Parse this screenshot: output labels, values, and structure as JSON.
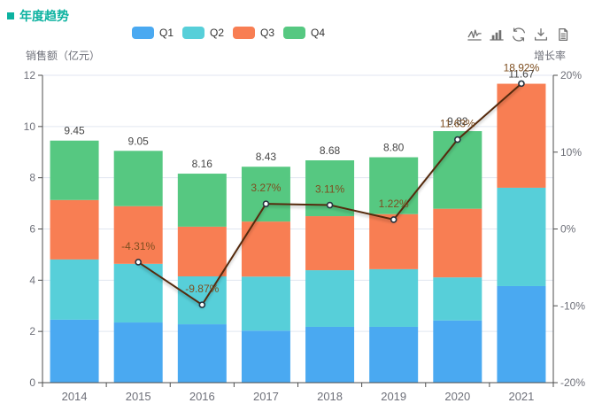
{
  "title": {
    "text": "年度趋势"
  },
  "legend": {
    "items": [
      {
        "label": "Q1",
        "color": "#4AA9F1"
      },
      {
        "label": "Q2",
        "color": "#57CFD9"
      },
      {
        "label": "Q3",
        "color": "#F87E53"
      },
      {
        "label": "Q4",
        "color": "#56C881"
      }
    ]
  },
  "toolbar": {
    "icons": [
      "switch-to-line-chart",
      "switch-to-bar-chart",
      "restore",
      "save-as-image",
      "data-view"
    ]
  },
  "axes": {
    "left": {
      "name": "销售额（亿元）",
      "ticks": [
        0,
        2,
        4,
        6,
        8,
        10,
        12
      ],
      "range": [
        0,
        12
      ]
    },
    "right": {
      "name": "增长率",
      "ticks": [
        "-20%",
        "-10%",
        "0%",
        "10%",
        "20%"
      ],
      "tick_values": [
        -20,
        -10,
        0,
        10,
        20
      ],
      "range": [
        -20,
        20
      ]
    },
    "x": {
      "categories": [
        "2014",
        "2015",
        "2016",
        "2017",
        "2018",
        "2019",
        "2020",
        "2021"
      ]
    }
  },
  "chart_data": {
    "type": "bar",
    "subtype": "stacked-bar-with-line-overlay",
    "title": "年度趋势",
    "categories": [
      "2014",
      "2015",
      "2016",
      "2017",
      "2018",
      "2019",
      "2020",
      "2021"
    ],
    "series": [
      {
        "name": "Q1",
        "type": "bar",
        "stack": true,
        "color": "#4AA9F1",
        "values": [
          2.46,
          2.35,
          2.28,
          2.03,
          2.18,
          2.18,
          2.43,
          3.77
        ]
      },
      {
        "name": "Q2",
        "type": "bar",
        "stack": true,
        "color": "#57CFD9",
        "values": [
          2.35,
          2.29,
          1.87,
          2.11,
          2.21,
          2.25,
          1.68,
          3.84
        ]
      },
      {
        "name": "Q3",
        "type": "bar",
        "stack": true,
        "color": "#F87E53",
        "values": [
          2.32,
          2.25,
          1.94,
          2.15,
          2.11,
          2.15,
          2.68,
          4.06
        ]
      },
      {
        "name": "Q4",
        "type": "bar",
        "stack": true,
        "color": "#56C881",
        "values": [
          2.32,
          2.16,
          2.07,
          2.14,
          2.18,
          2.22,
          3.03,
          0
        ]
      },
      {
        "name": "增长率",
        "type": "line",
        "axis": "right",
        "color": "#542B0E",
        "values": [
          null,
          -4.31,
          -9.87,
          3.27,
          3.11,
          1.22,
          11.63,
          18.92
        ],
        "labels": [
          "",
          "-4.31%",
          "-9.87%",
          "3.27%",
          "3.11%",
          "1.22%",
          "11.63%",
          "18.92%"
        ]
      }
    ],
    "bar_total_labels": [
      "9.45",
      "9.05",
      "8.16",
      "8.43",
      "8.68",
      "8.80",
      "9.82",
      "11.67"
    ],
    "xlabel": "",
    "ylabel_left": "销售额（亿元）",
    "ylabel_right": "增长率",
    "ylim_left": [
      0,
      12
    ],
    "ylim_right": [
      -20,
      20
    ],
    "grid": true,
    "legend_position": "top-center"
  },
  "colors": {
    "title": "#0CB2A0",
    "axis_label": "#6E7079",
    "axis_line": "#4D4D4D",
    "grid": "#E0E6F1",
    "bar_label": "#464646",
    "growth_label": "#7E4E1F",
    "line": "#542B0E",
    "marker_fill": "#FFFFFF",
    "marker_border": "#24323F",
    "toolbar_icon": "#707070",
    "legend_text": "#333333"
  }
}
